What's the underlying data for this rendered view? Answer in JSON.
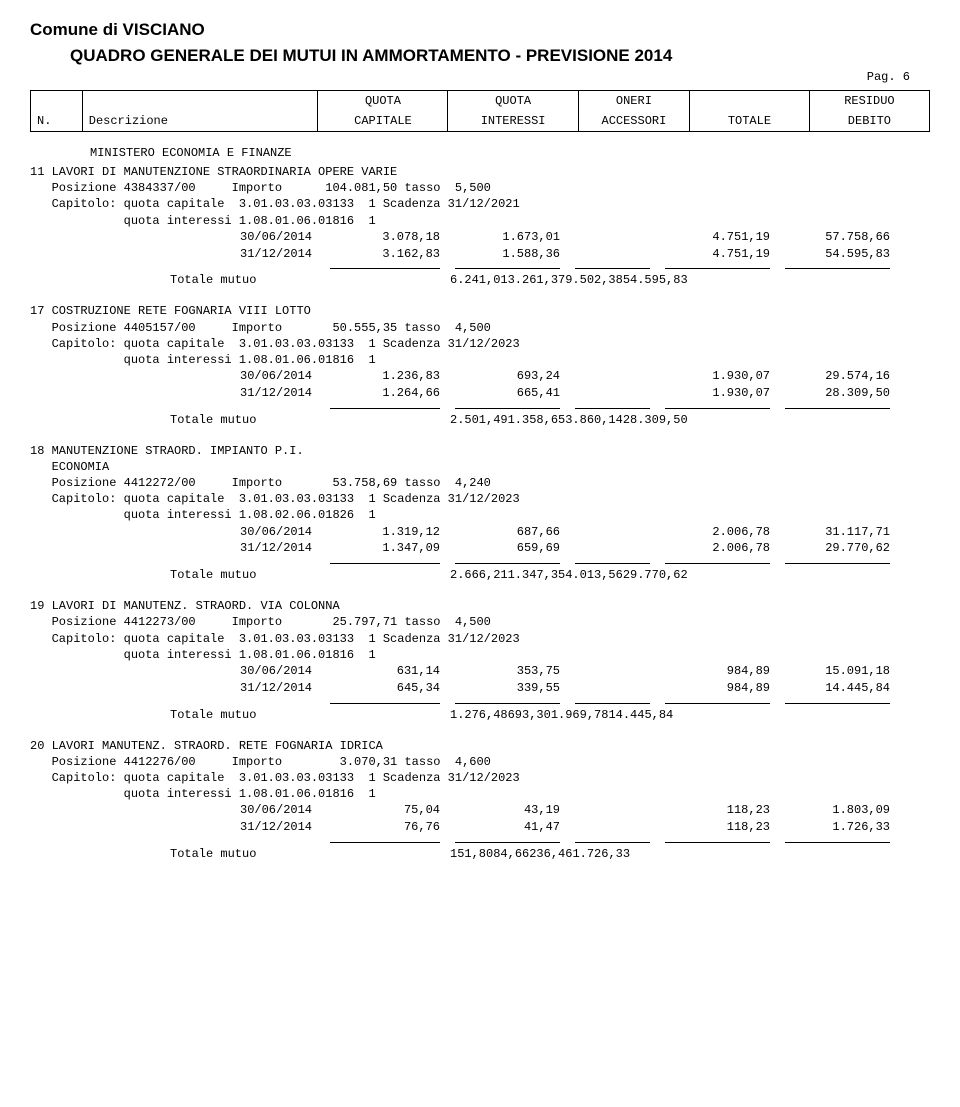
{
  "document_title": "Comune di VISCIANO",
  "document_subtitle": "QUADRO GENERALE DEI MUTUI IN AMMORTAMENTO - PREVISIONE 2014",
  "page_label": "Pag.  6",
  "header": {
    "col_n": "N.",
    "col_desc": "Descrizione",
    "col_quota1_a": "QUOTA",
    "col_quota1_b": "CAPITALE",
    "col_quota2_a": "QUOTA",
    "col_quota2_b": "INTERESSI",
    "col_oneri_a": "ONERI",
    "col_oneri_b": "ACCESSORI",
    "col_totale": "TOTALE",
    "col_res_a": "RESIDUO",
    "col_res_b": "DEBITO"
  },
  "section_heading": "MINISTERO ECONOMIA E FINANZE",
  "totale_mutuo_label": "Totale mutuo",
  "entries": [
    {
      "num": "11",
      "title": "LAVORI DI MANUTENZIONE STRAORDINARIA OPERE VARIE",
      "pos": "Posizione 4384337/00     Importo      104.081,50 tasso  5,500",
      "cap": "Capitolo: quota capitale  3.01.03.03.03133  1 Scadenza 31/12/2021",
      "qi": "          quota interessi 1.08.01.06.01816  1",
      "rows": [
        {
          "date": "30/06/2014",
          "c1": "3.078,18",
          "c2": "1.673,01",
          "c4": "4.751,19",
          "c5": "57.758,66"
        },
        {
          "date": "31/12/2014",
          "c1": "3.162,83",
          "c2": "1.588,36",
          "c4": "4.751,19",
          "c5": "54.595,83"
        }
      ],
      "total": {
        "c1": "6.241,01",
        "c2": "3.261,37",
        "c4": "9.502,38",
        "c5": "54.595,83"
      }
    },
    {
      "num": "17",
      "title": "COSTRUZIONE RETE FOGNARIA VIII LOTTO",
      "pos": "Posizione 4405157/00     Importo       50.555,35 tasso  4,500",
      "cap": "Capitolo: quota capitale  3.01.03.03.03133  1 Scadenza 31/12/2023",
      "qi": "          quota interessi 1.08.01.06.01816  1",
      "rows": [
        {
          "date": "30/06/2014",
          "c1": "1.236,83",
          "c2": "693,24",
          "c4": "1.930,07",
          "c5": "29.574,16"
        },
        {
          "date": "31/12/2014",
          "c1": "1.264,66",
          "c2": "665,41",
          "c4": "1.930,07",
          "c5": "28.309,50"
        }
      ],
      "total": {
        "c1": "2.501,49",
        "c2": "1.358,65",
        "c4": "3.860,14",
        "c5": "28.309,50"
      }
    },
    {
      "num": "18",
      "title": "MANUTENZIONE STRAORD. IMPIANTO P.I.",
      "title2": "ECONOMIA",
      "pos": "Posizione 4412272/00     Importo       53.758,69 tasso  4,240",
      "cap": "Capitolo: quota capitale  3.01.03.03.03133  1 Scadenza 31/12/2023",
      "qi": "          quota interessi 1.08.02.06.01826  1",
      "rows": [
        {
          "date": "30/06/2014",
          "c1": "1.319,12",
          "c2": "687,66",
          "c4": "2.006,78",
          "c5": "31.117,71"
        },
        {
          "date": "31/12/2014",
          "c1": "1.347,09",
          "c2": "659,69",
          "c4": "2.006,78",
          "c5": "29.770,62"
        }
      ],
      "total": {
        "c1": "2.666,21",
        "c2": "1.347,35",
        "c4": "4.013,56",
        "c5": "29.770,62"
      }
    },
    {
      "num": "19",
      "title": "LAVORI DI MANUTENZ. STRAORD. VIA COLONNA",
      "pos": "Posizione 4412273/00     Importo       25.797,71 tasso  4,500",
      "cap": "Capitolo: quota capitale  3.01.03.03.03133  1 Scadenza 31/12/2023",
      "qi": "          quota interessi 1.08.01.06.01816  1",
      "rows": [
        {
          "date": "30/06/2014",
          "c1": "631,14",
          "c2": "353,75",
          "c4": "984,89",
          "c5": "15.091,18"
        },
        {
          "date": "31/12/2014",
          "c1": "645,34",
          "c2": "339,55",
          "c4": "984,89",
          "c5": "14.445,84"
        }
      ],
      "total": {
        "c1": "1.276,48",
        "c2": "693,30",
        "c4": "1.969,78",
        "c5": "14.445,84"
      }
    },
    {
      "num": "20",
      "title": "LAVORI MANUTENZ. STRAORD. RETE FOGNARIA IDRICA",
      "pos": "Posizione 4412276/00     Importo        3.070,31 tasso  4,600",
      "cap": "Capitolo: quota capitale  3.01.03.03.03133  1 Scadenza 31/12/2023",
      "qi": "          quota interessi 1.08.01.06.01816  1",
      "rows": [
        {
          "date": "30/06/2014",
          "c1": "75,04",
          "c2": "43,19",
          "c4": "118,23",
          "c5": "1.803,09"
        },
        {
          "date": "31/12/2014",
          "c1": "76,76",
          "c2": "41,47",
          "c4": "118,23",
          "c5": "1.726,33"
        }
      ],
      "total": {
        "c1": "151,80",
        "c2": "84,66",
        "c4": "236,46",
        "c5": "1.726,33"
      }
    }
  ]
}
